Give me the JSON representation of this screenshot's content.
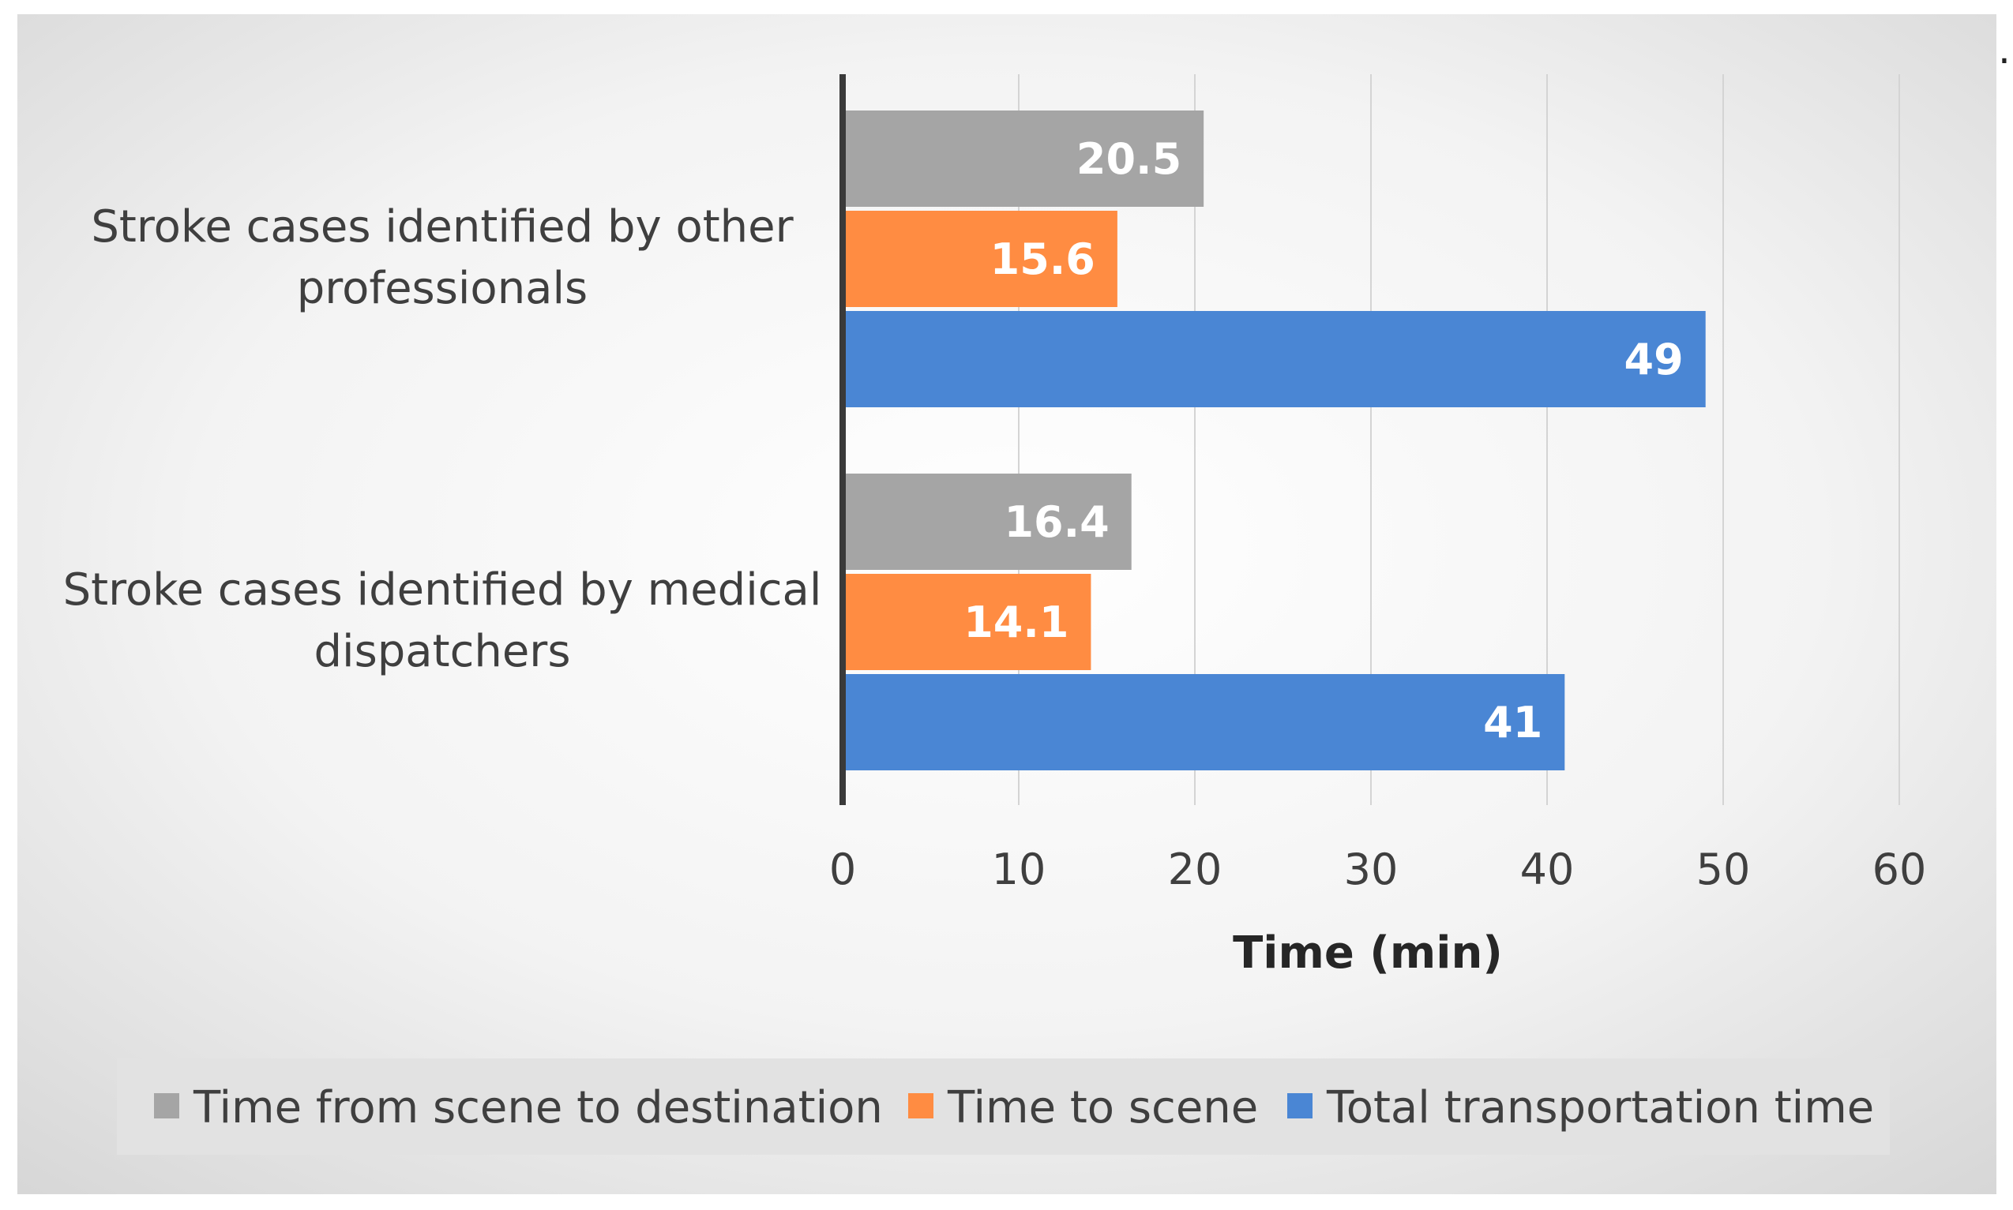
{
  "chart_data": {
    "type": "bar",
    "orientation": "horizontal",
    "title": "",
    "categories": [
      "Stroke cases identified by other professionals",
      "Stroke cases identified by medical dispatchers"
    ],
    "category_label_lines": [
      [
        "Stroke cases identified by other",
        "professionals"
      ],
      [
        "Stroke cases identified by medical",
        "dispatchers"
      ]
    ],
    "series": [
      {
        "name": "Time from scene to destination",
        "color": "#a5a5a5",
        "values": [
          20.5,
          16.4
        ]
      },
      {
        "name": "Time to scene",
        "color": "#ff8c42",
        "values": [
          15.6,
          14.1
        ]
      },
      {
        "name": "Total transportation time",
        "color": "#4a86d4",
        "values": [
          49,
          41
        ]
      }
    ],
    "data_labels": [
      [
        "20.5",
        "16.4"
      ],
      [
        "15.6",
        "14.1"
      ],
      [
        "49",
        "41"
      ]
    ],
    "xlabel": "Time (min)",
    "ylabel": "",
    "xlim": [
      0,
      60
    ],
    "ticks": [
      0,
      10,
      20,
      30,
      40,
      50,
      60
    ],
    "tick_labels": [
      "0",
      "10",
      "20",
      "30",
      "40",
      "50",
      "60"
    ],
    "grid": true,
    "legend_position": "bottom",
    "stray_mark": "."
  }
}
